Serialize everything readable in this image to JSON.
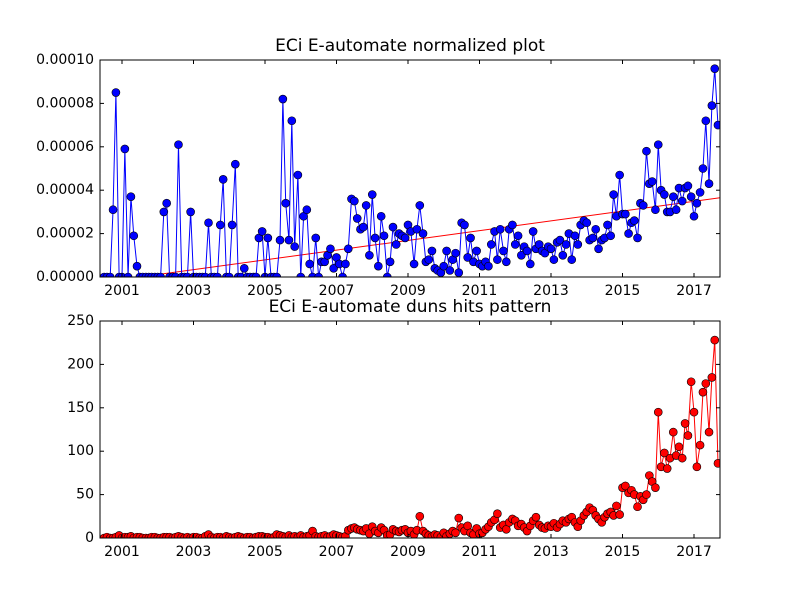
{
  "chart_data": [
    {
      "type": "line",
      "title": "ECi E-automate normalized plot",
      "xlim": [
        2000.385,
        2017.727
      ],
      "xticks": [
        2001,
        2003,
        2005,
        2007,
        2009,
        2011,
        2013,
        2015,
        2017
      ],
      "ylim": [
        0,
        0.0001
      ],
      "yticks": [
        {
          "value": 0,
          "label": "0.00000"
        },
        {
          "value": 2e-05,
          "label": "0.00002"
        },
        {
          "value": 4e-05,
          "label": "0.00004"
        },
        {
          "value": 6e-05,
          "label": "0.00006"
        },
        {
          "value": 8e-05,
          "label": "0.00008"
        },
        {
          "value": 0.0001,
          "label": "0.00010"
        }
      ],
      "x": [
        2000.5,
        2000.58,
        2000.67,
        2000.75,
        2000.83,
        2000.92,
        2001,
        2001.08,
        2001.17,
        2001.25,
        2001.33,
        2001.42,
        2001.5,
        2001.58,
        2001.67,
        2001.75,
        2001.83,
        2001.92,
        2002,
        2002.08,
        2002.17,
        2002.25,
        2002.33,
        2002.42,
        2002.5,
        2002.58,
        2002.67,
        2002.75,
        2002.83,
        2002.92,
        2003,
        2003.08,
        2003.17,
        2003.25,
        2003.33,
        2003.42,
        2003.5,
        2003.58,
        2003.67,
        2003.75,
        2003.83,
        2003.92,
        2004,
        2004.08,
        2004.17,
        2004.25,
        2004.33,
        2004.42,
        2004.5,
        2004.58,
        2004.67,
        2004.75,
        2004.83,
        2004.92,
        2005,
        2005.08,
        2005.17,
        2005.25,
        2005.33,
        2005.42,
        2005.5,
        2005.58,
        2005.67,
        2005.75,
        2005.83,
        2005.92,
        2006,
        2006.08,
        2006.17,
        2006.25,
        2006.33,
        2006.42,
        2006.5,
        2006.58,
        2006.67,
        2006.75,
        2006.83,
        2006.92,
        2007,
        2007.08,
        2007.17,
        2007.25,
        2007.33,
        2007.42,
        2007.5,
        2007.58,
        2007.67,
        2007.75,
        2007.83,
        2007.92,
        2008,
        2008.08,
        2008.17,
        2008.25,
        2008.33,
        2008.42,
        2008.5,
        2008.58,
        2008.67,
        2008.75,
        2008.83,
        2008.92,
        2009,
        2009.08,
        2009.17,
        2009.25,
        2009.33,
        2009.42,
        2009.5,
        2009.58,
        2009.67,
        2009.75,
        2009.83,
        2009.92,
        2010,
        2010.08,
        2010.17,
        2010.25,
        2010.33,
        2010.42,
        2010.5,
        2010.58,
        2010.67,
        2010.75,
        2010.83,
        2010.92,
        2011,
        2011.08,
        2011.17,
        2011.25,
        2011.33,
        2011.42,
        2011.5,
        2011.58,
        2011.67,
        2011.75,
        2011.83,
        2011.92,
        2012,
        2012.08,
        2012.17,
        2012.25,
        2012.33,
        2012.42,
        2012.5,
        2012.58,
        2012.67,
        2012.75,
        2012.83,
        2012.92,
        2013,
        2013.08,
        2013.17,
        2013.25,
        2013.33,
        2013.42,
        2013.5,
        2013.58,
        2013.67,
        2013.75,
        2013.83,
        2013.92,
        2014,
        2014.08,
        2014.17,
        2014.25,
        2014.33,
        2014.42,
        2014.5,
        2014.58,
        2014.67,
        2014.75,
        2014.83,
        2014.92,
        2015,
        2015.08,
        2015.17,
        2015.25,
        2015.33,
        2015.42,
        2015.5,
        2015.58,
        2015.67,
        2015.75,
        2015.83,
        2015.92,
        2016,
        2016.08,
        2016.17,
        2016.25,
        2016.33,
        2016.42,
        2016.5,
        2016.58,
        2016.67,
        2016.75,
        2016.83,
        2016.92,
        2017,
        2017.08,
        2017.17,
        2017.25,
        2017.33,
        2017.42,
        2017.5,
        2017.58,
        2017.67
      ],
      "series": [
        {
          "color": "#0000ff",
          "marker": true,
          "values": [
            0,
            0,
            0,
            3.1e-05,
            8.5e-05,
            0,
            0,
            5.9e-05,
            0,
            3.7e-05,
            1.9e-05,
            5e-06,
            0,
            0,
            0,
            0,
            0,
            0,
            0,
            0,
            3e-05,
            3.4e-05,
            0,
            0,
            0,
            6.1e-05,
            0,
            0,
            0,
            3e-05,
            0,
            0,
            0,
            0,
            0,
            2.5e-05,
            0,
            0,
            0,
            2.4e-05,
            4.5e-05,
            0,
            0,
            2.4e-05,
            5.2e-05,
            0,
            0,
            4e-06,
            0,
            0,
            0,
            0,
            1.8e-05,
            2.1e-05,
            0,
            1.8e-05,
            0,
            0,
            0,
            1.7e-05,
            8.2e-05,
            3.4e-05,
            1.7e-05,
            7.2e-05,
            1.4e-05,
            4.7e-05,
            0,
            2.8e-05,
            3.1e-05,
            6e-06,
            0,
            1.8e-05,
            0,
            7e-06,
            7e-06,
            1e-05,
            1.3e-05,
            4e-06,
            9e-06,
            6e-06,
            0,
            6e-06,
            1.3e-05,
            3.6e-05,
            3.5e-05,
            2.7e-05,
            2.2e-05,
            2.3e-05,
            3.3e-05,
            1e-05,
            3.8e-05,
            1.8e-05,
            5e-06,
            2.8e-05,
            1.9e-05,
            0,
            7e-06,
            2.3e-05,
            1.5e-05,
            2e-05,
            1.9e-05,
            1.8e-05,
            2.4e-05,
            2.1e-05,
            6e-06,
            2.2e-05,
            3.3e-05,
            2e-05,
            7e-06,
            8e-06,
            1.2e-05,
            4e-06,
            3e-06,
            2e-06,
            5e-06,
            1.2e-05,
            3e-06,
            8e-06,
            1.1e-05,
            2e-06,
            2.5e-05,
            2.4e-05,
            9e-06,
            1.8e-05,
            7e-06,
            1.2e-05,
            6e-06,
            5e-06,
            7e-06,
            5e-06,
            1.5e-05,
            2.1e-05,
            8e-06,
            2.2e-05,
            1.2e-05,
            7e-06,
            2.2e-05,
            2.4e-05,
            1.5e-05,
            1.9e-05,
            1e-05,
            1.4e-05,
            1.2e-05,
            6e-06,
            2.1e-05,
            1.3e-05,
            1.5e-05,
            1.2e-05,
            1.1e-05,
            1.4e-05,
            1.3e-05,
            8e-06,
            1.6e-05,
            1.7e-05,
            1e-05,
            1.5e-05,
            2e-05,
            8e-06,
            1.9e-05,
            1.5e-05,
            2.4e-05,
            2.6e-05,
            2.5e-05,
            1.7e-05,
            1.8e-05,
            2.2e-05,
            1.3e-05,
            1.7e-05,
            1.8e-05,
            2.4e-05,
            1.9e-05,
            3.8e-05,
            2.8e-05,
            4.7e-05,
            2.9e-05,
            2.9e-05,
            2e-05,
            2.5e-05,
            2.6e-05,
            1.8e-05,
            3.4e-05,
            3.3e-05,
            5.8e-05,
            4.3e-05,
            4.4e-05,
            3.1e-05,
            6.1e-05,
            4e-05,
            3.8e-05,
            3e-05,
            3e-05,
            3.7e-05,
            3.1e-05,
            4.1e-05,
            3.5e-05,
            4.1e-05,
            4.2e-05,
            3.7e-05,
            2.8e-05,
            3.4e-05,
            3.9e-05,
            5e-05,
            7.2e-05,
            4.3e-05,
            7.9e-05,
            9.6e-05,
            7e-05
          ]
        }
      ],
      "trend": {
        "color": "#ff0000",
        "x": [
          2000.385,
          2017.727
        ],
        "values": [
          -2.5e-06,
          3.65e-05
        ]
      }
    },
    {
      "type": "line",
      "title": "ECi E-automate duns hits pattern",
      "xlim": [
        2000.385,
        2017.727
      ],
      "xticks": [
        2001,
        2003,
        2005,
        2007,
        2009,
        2011,
        2013,
        2015,
        2017
      ],
      "ylim": [
        0,
        250
      ],
      "yticks": [
        0,
        50,
        100,
        150,
        200,
        250
      ],
      "x": [
        2000.5,
        2000.58,
        2000.67,
        2000.75,
        2000.83,
        2000.92,
        2001,
        2001.08,
        2001.17,
        2001.25,
        2001.33,
        2001.42,
        2001.5,
        2001.58,
        2001.67,
        2001.75,
        2001.83,
        2001.92,
        2002,
        2002.08,
        2002.17,
        2002.25,
        2002.33,
        2002.42,
        2002.5,
        2002.58,
        2002.67,
        2002.75,
        2002.83,
        2002.92,
        2003,
        2003.08,
        2003.17,
        2003.25,
        2003.33,
        2003.42,
        2003.5,
        2003.58,
        2003.67,
        2003.75,
        2003.83,
        2003.92,
        2004,
        2004.08,
        2004.17,
        2004.25,
        2004.33,
        2004.42,
        2004.5,
        2004.58,
        2004.67,
        2004.75,
        2004.83,
        2004.92,
        2005,
        2005.08,
        2005.17,
        2005.25,
        2005.33,
        2005.42,
        2005.5,
        2005.58,
        2005.67,
        2005.75,
        2005.83,
        2005.92,
        2006,
        2006.08,
        2006.17,
        2006.25,
        2006.33,
        2006.42,
        2006.5,
        2006.58,
        2006.67,
        2006.75,
        2006.83,
        2006.92,
        2007,
        2007.08,
        2007.17,
        2007.25,
        2007.33,
        2007.42,
        2007.5,
        2007.58,
        2007.67,
        2007.75,
        2007.83,
        2007.92,
        2008,
        2008.08,
        2008.17,
        2008.25,
        2008.33,
        2008.42,
        2008.5,
        2008.58,
        2008.67,
        2008.75,
        2008.83,
        2008.92,
        2009,
        2009.08,
        2009.17,
        2009.25,
        2009.33,
        2009.42,
        2009.5,
        2009.58,
        2009.67,
        2009.75,
        2009.83,
        2009.92,
        2010,
        2010.08,
        2010.17,
        2010.25,
        2010.33,
        2010.42,
        2010.5,
        2010.58,
        2010.67,
        2010.75,
        2010.83,
        2010.92,
        2011,
        2011.08,
        2011.17,
        2011.25,
        2011.33,
        2011.42,
        2011.5,
        2011.58,
        2011.67,
        2011.75,
        2011.83,
        2011.92,
        2012,
        2012.08,
        2012.17,
        2012.25,
        2012.33,
        2012.42,
        2012.5,
        2012.58,
        2012.67,
        2012.75,
        2012.83,
        2012.92,
        2013,
        2013.08,
        2013.17,
        2013.25,
        2013.33,
        2013.42,
        2013.5,
        2013.58,
        2013.67,
        2013.75,
        2013.83,
        2013.92,
        2014,
        2014.08,
        2014.17,
        2014.25,
        2014.33,
        2014.42,
        2014.5,
        2014.58,
        2014.67,
        2014.75,
        2014.83,
        2014.92,
        2015,
        2015.08,
        2015.17,
        2015.25,
        2015.33,
        2015.42,
        2015.5,
        2015.58,
        2015.67,
        2015.75,
        2015.83,
        2015.92,
        2016,
        2016.08,
        2016.17,
        2016.25,
        2016.33,
        2016.42,
        2016.5,
        2016.58,
        2016.67,
        2016.75,
        2016.83,
        2016.92,
        2017,
        2017.08,
        2017.17,
        2017.25,
        2017.33,
        2017.42,
        2017.5,
        2017.58,
        2017.67
      ],
      "series": [
        {
          "color": "#ff0000",
          "marker": true,
          "values": [
            0,
            1,
            0,
            0,
            1,
            3,
            0,
            1,
            1,
            2,
            0,
            1,
            1,
            0,
            0,
            0,
            1,
            1,
            0,
            0,
            1,
            1,
            1,
            0,
            1,
            2,
            1,
            0,
            1,
            0,
            1,
            1,
            0,
            0,
            2,
            4,
            1,
            0,
            1,
            1,
            0,
            2,
            1,
            0,
            1,
            2,
            1,
            0,
            1,
            1,
            0,
            1,
            2,
            2,
            1,
            1,
            0,
            1,
            4,
            3,
            2,
            1,
            3,
            1,
            2,
            1,
            3,
            1,
            2,
            3,
            8,
            2,
            1,
            2,
            3,
            1,
            2,
            4,
            3,
            2,
            1,
            2,
            9,
            11,
            12,
            10,
            9,
            8,
            11,
            5,
            13,
            8,
            6,
            12,
            9,
            3,
            4,
            10,
            8,
            7,
            9,
            10,
            6,
            8,
            4,
            9,
            25,
            8,
            5,
            3,
            2,
            4,
            3,
            1,
            6,
            2,
            5,
            8,
            6,
            23,
            12,
            8,
            14,
            6,
            4,
            11,
            5,
            6,
            10,
            13,
            18,
            21,
            28,
            12,
            15,
            10,
            18,
            22,
            20,
            14,
            16,
            12,
            8,
            14,
            20,
            24,
            15,
            12,
            11,
            14,
            13,
            17,
            12,
            16,
            20,
            18,
            22,
            24,
            18,
            13,
            20,
            26,
            30,
            35,
            32,
            26,
            22,
            18,
            24,
            28,
            30,
            26,
            37,
            27,
            58,
            60,
            52,
            55,
            50,
            36,
            48,
            44,
            50,
            72,
            65,
            58,
            145,
            82,
            98,
            80,
            92,
            122,
            95,
            105,
            92,
            132,
            118,
            180,
            145,
            82,
            107,
            168,
            178,
            122,
            185,
            228,
            86
          ]
        }
      ]
    }
  ]
}
